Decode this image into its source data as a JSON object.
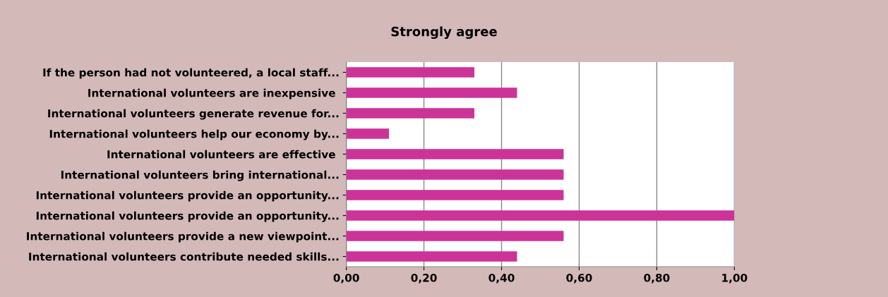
{
  "chart_data": {
    "type": "bar",
    "orientation": "horizontal",
    "title": "Strongly agree",
    "categories": [
      "If the person had not volunteered, a local staff...",
      "International volunteers are inexpensive ",
      "International volunteers generate revenue for...",
      "International volunteers help our economy by...",
      "International volunteers are effective ",
      "International volunteers bring international...",
      "International volunteers provide an opportunity...",
      "International volunteers provide an opportunity...",
      "International volunteers provide a new viewpoint...",
      "International volunteers contribute needed skills..."
    ],
    "values": [
      0.33,
      0.44,
      0.33,
      0.11,
      0.56,
      0.56,
      0.56,
      1.0,
      0.56,
      0.44
    ],
    "color": "#cc3399",
    "xlim": [
      0,
      1
    ],
    "xticks": [
      {
        "value": 0,
        "label": "0,00"
      },
      {
        "value": 0.2,
        "label": "0,20"
      },
      {
        "value": 0.4,
        "label": "0,40"
      },
      {
        "value": 0.6,
        "label": "0,60"
      },
      {
        "value": 0.8,
        "label": "0,80"
      },
      {
        "value": 1.0,
        "label": "1,00"
      }
    ],
    "grid": "x",
    "legend": false
  }
}
